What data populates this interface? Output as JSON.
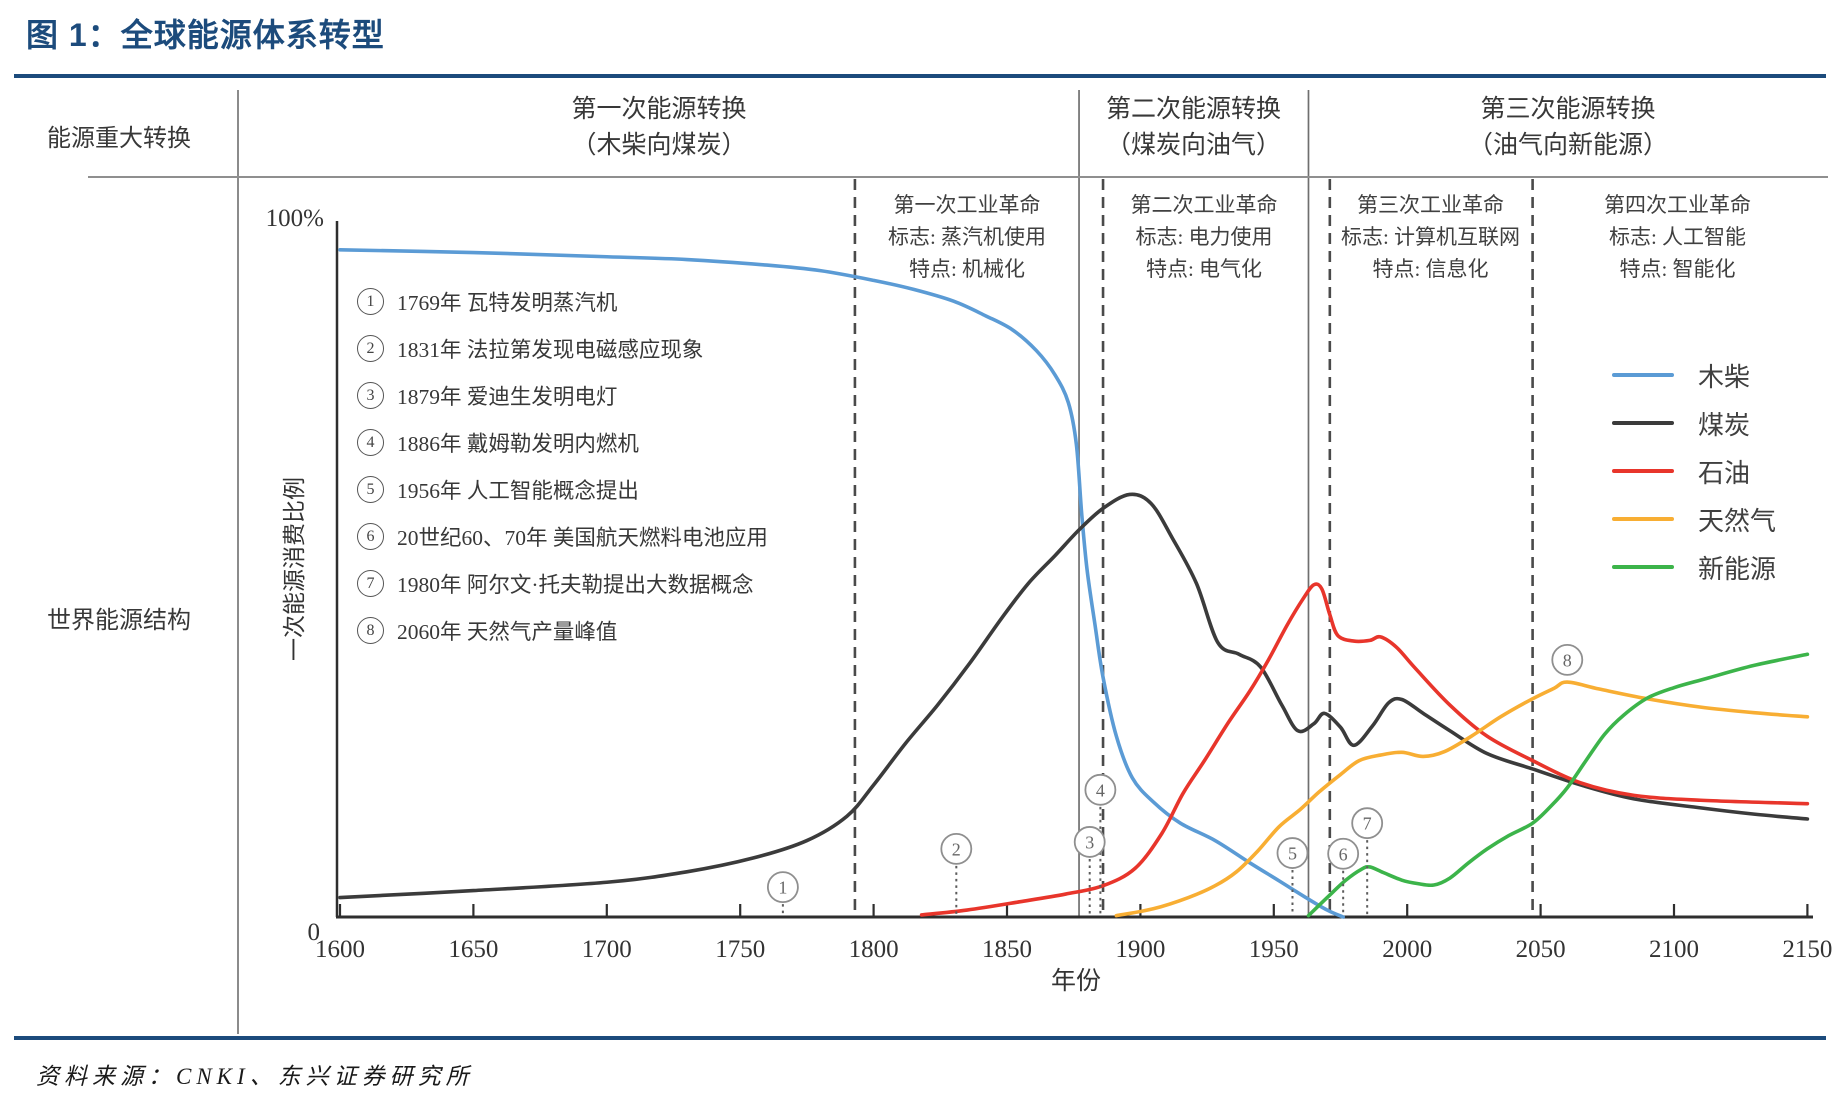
{
  "page": {
    "title": "图 1：全球能源体系转型",
    "source_note": "资料来源：CNKI、东兴证券研究所",
    "accent_color": "#1C4B7C"
  },
  "matrix": {
    "row_label": "能源重大转换",
    "structure_label": "世界能源结构",
    "eras": [
      {
        "title": "第一次能源转换",
        "subtitle": "（木柴向煤炭）"
      },
      {
        "title": "第二次能源转换",
        "subtitle": "（煤炭向油气）"
      },
      {
        "title": "第三次能源转换",
        "subtitle": "（油气向新能源）"
      }
    ]
  },
  "revolutions": [
    {
      "title": "第一次工业革命",
      "mark": "标志: 蒸汽机使用",
      "trait": "特点: 机械化"
    },
    {
      "title": "第二次工业革命",
      "mark": "标志: 电力使用",
      "trait": "特点: 电气化"
    },
    {
      "title": "第三次工业革命",
      "mark": "标志: 计算机互联网",
      "trait": "特点: 信息化"
    },
    {
      "title": "第四次工业革命",
      "mark": "标志: 人工智能",
      "trait": "特点: 智能化"
    }
  ],
  "annotations": [
    {
      "num": "1",
      "text": "1769年 瓦特发明蒸汽机"
    },
    {
      "num": "2",
      "text": "1831年 法拉第发现电磁感应现象"
    },
    {
      "num": "3",
      "text": "1879年 爱迪生发明电灯"
    },
    {
      "num": "4",
      "text": "1886年 戴姆勒发明内燃机"
    },
    {
      "num": "5",
      "text": "1956年 人工智能概念提出"
    },
    {
      "num": "6",
      "text": "20世纪60、70年 美国航天燃料电池应用"
    },
    {
      "num": "7",
      "text": "1980年 阿尔文·托夫勒提出大数据概念"
    },
    {
      "num": "8",
      "text": "2060年 天然气产量峰值"
    }
  ],
  "chart_data": {
    "type": "line",
    "title": "全球能源体系转型",
    "xlabel": "年份",
    "ylabel": "一次能源消费比例",
    "y_top_label": "100%",
    "y_bottom_label": "0",
    "x_range": [
      1600,
      2150
    ],
    "y_range_pct": [
      0,
      100
    ],
    "x_ticks": [
      1600,
      1650,
      1700,
      1750,
      1800,
      1850,
      1900,
      1950,
      2000,
      2050,
      2100,
      2150
    ],
    "era_divider_years": [
      1877,
      1963
    ],
    "revolution_line_years": [
      1793,
      1886,
      1971,
      2047
    ],
    "grid": false,
    "legend_position": "right-middle",
    "series": [
      {
        "key": "wood",
        "name": "木柴",
        "color": "#5B9BD5",
        "points": [
          [
            1600,
            96
          ],
          [
            1650,
            95.6
          ],
          [
            1700,
            95
          ],
          [
            1730,
            94.6
          ],
          [
            1760,
            93.8
          ],
          [
            1780,
            93
          ],
          [
            1800,
            91.6
          ],
          [
            1815,
            90.3
          ],
          [
            1830,
            88.6
          ],
          [
            1842,
            86.5
          ],
          [
            1852,
            84.5
          ],
          [
            1861,
            81.5
          ],
          [
            1868,
            78
          ],
          [
            1873,
            74
          ],
          [
            1876,
            68
          ],
          [
            1878,
            58
          ],
          [
            1880,
            50
          ],
          [
            1883,
            42
          ],
          [
            1886,
            34.5
          ],
          [
            1891,
            26
          ],
          [
            1897,
            20
          ],
          [
            1905,
            16.5
          ],
          [
            1915,
            13.5
          ],
          [
            1928,
            11
          ],
          [
            1941,
            7.8
          ],
          [
            1952,
            5.2
          ],
          [
            1962,
            2.8
          ],
          [
            1970,
            1
          ],
          [
            1976,
            0
          ]
        ]
      },
      {
        "key": "coal",
        "name": "煤炭",
        "color": "#3B3B3B",
        "points": [
          [
            1600,
            2.8
          ],
          [
            1650,
            3.8
          ],
          [
            1700,
            5
          ],
          [
            1730,
            6.5
          ],
          [
            1755,
            8.5
          ],
          [
            1775,
            11
          ],
          [
            1790,
            14.5
          ],
          [
            1800,
            19
          ],
          [
            1812,
            25
          ],
          [
            1824,
            30.5
          ],
          [
            1836,
            36.5
          ],
          [
            1848,
            43
          ],
          [
            1858,
            48
          ],
          [
            1868,
            52
          ],
          [
            1877,
            55.7
          ],
          [
            1886,
            58.8
          ],
          [
            1896,
            60.8
          ],
          [
            1904,
            59.5
          ],
          [
            1912,
            54.5
          ],
          [
            1921,
            48
          ],
          [
            1929,
            39.5
          ],
          [
            1937,
            37.8
          ],
          [
            1945,
            36
          ],
          [
            1953,
            30.5
          ],
          [
            1959,
            26.8
          ],
          [
            1965,
            27.8
          ],
          [
            1969,
            29.3
          ],
          [
            1975,
            27.3
          ],
          [
            1980,
            24.7
          ],
          [
            1987,
            27.5
          ],
          [
            1993,
            30.8
          ],
          [
            1998,
            31.3
          ],
          [
            2006,
            29.3
          ],
          [
            2016,
            26.8
          ],
          [
            2030,
            23.5
          ],
          [
            2047,
            21.3
          ],
          [
            2065,
            19
          ],
          [
            2085,
            17
          ],
          [
            2110,
            15.7
          ],
          [
            2130,
            14.8
          ],
          [
            2150,
            14.1
          ]
        ]
      },
      {
        "key": "oil",
        "name": "石油",
        "color": "#E8352B",
        "points": [
          [
            1818,
            0.3
          ],
          [
            1835,
            1
          ],
          [
            1855,
            2.2
          ],
          [
            1872,
            3.3
          ],
          [
            1886,
            4.5
          ],
          [
            1898,
            7
          ],
          [
            1908,
            12
          ],
          [
            1916,
            17.8
          ],
          [
            1924,
            22.5
          ],
          [
            1933,
            28
          ],
          [
            1941,
            32.5
          ],
          [
            1948,
            37
          ],
          [
            1955,
            42
          ],
          [
            1961,
            45.8
          ],
          [
            1965,
            47.8
          ],
          [
            1968,
            47.2
          ],
          [
            1971,
            43.5
          ],
          [
            1974,
            40.5
          ],
          [
            1980,
            39.7
          ],
          [
            1986,
            39.8
          ],
          [
            1990,
            40.3
          ],
          [
            1996,
            38.8
          ],
          [
            2003,
            35.8
          ],
          [
            2016,
            30.5
          ],
          [
            2030,
            26
          ],
          [
            2047,
            22.5
          ],
          [
            2065,
            19.3
          ],
          [
            2085,
            17.5
          ],
          [
            2110,
            16.8
          ],
          [
            2150,
            16.3
          ]
        ]
      },
      {
        "key": "gas",
        "name": "天然气",
        "color": "#F8AE33",
        "points": [
          [
            1891,
            0.2
          ],
          [
            1905,
            1.2
          ],
          [
            1918,
            2.8
          ],
          [
            1928,
            4.5
          ],
          [
            1936,
            6.5
          ],
          [
            1944,
            9.5
          ],
          [
            1952,
            13
          ],
          [
            1960,
            15.5
          ],
          [
            1967,
            18
          ],
          [
            1975,
            20.5
          ],
          [
            1982,
            22.5
          ],
          [
            1990,
            23.3
          ],
          [
            1998,
            23.7
          ],
          [
            2006,
            23.1
          ],
          [
            2014,
            23.8
          ],
          [
            2024,
            26
          ],
          [
            2035,
            28.8
          ],
          [
            2046,
            31.2
          ],
          [
            2055,
            32.9
          ],
          [
            2060,
            33.8
          ],
          [
            2072,
            32.8
          ],
          [
            2090,
            31.4
          ],
          [
            2110,
            30.2
          ],
          [
            2130,
            29.4
          ],
          [
            2150,
            28.8
          ]
        ]
      },
      {
        "key": "newenergy",
        "name": "新能源",
        "color": "#3CB44A",
        "points": [
          [
            1963,
            0.2
          ],
          [
            1970,
            2.8
          ],
          [
            1977,
            5.3
          ],
          [
            1983,
            6.9
          ],
          [
            1986,
            7.2
          ],
          [
            1991,
            6.4
          ],
          [
            1998,
            5.3
          ],
          [
            2004,
            4.8
          ],
          [
            2010,
            4.6
          ],
          [
            2016,
            5.6
          ],
          [
            2023,
            7.8
          ],
          [
            2030,
            9.8
          ],
          [
            2038,
            11.7
          ],
          [
            2047,
            13.5
          ],
          [
            2054,
            16
          ],
          [
            2060,
            18.6
          ],
          [
            2067,
            22.5
          ],
          [
            2074,
            26.3
          ],
          [
            2081,
            29
          ],
          [
            2090,
            31.5
          ],
          [
            2100,
            33
          ],
          [
            2112,
            34.3
          ],
          [
            2130,
            36.2
          ],
          [
            2150,
            37.8
          ]
        ]
      }
    ],
    "events": [
      {
        "num": "1",
        "year": 1766,
        "pct": 4.3,
        "leader": true
      },
      {
        "num": "2",
        "year": 1831,
        "pct": 9.8,
        "leader": true
      },
      {
        "num": "3",
        "year": 1881,
        "pct": 10.8,
        "leader": true
      },
      {
        "num": "4",
        "year": 1885,
        "pct": 18.3,
        "leader": true
      },
      {
        "num": "5",
        "year": 1957,
        "pct": 9.2,
        "leader": true
      },
      {
        "num": "6",
        "year": 1976,
        "pct": 9.1,
        "leader": true
      },
      {
        "num": "7",
        "year": 1985,
        "pct": 13.5,
        "leader": true
      },
      {
        "num": "8",
        "year": 2060,
        "pct": 37,
        "leader": false
      }
    ]
  }
}
